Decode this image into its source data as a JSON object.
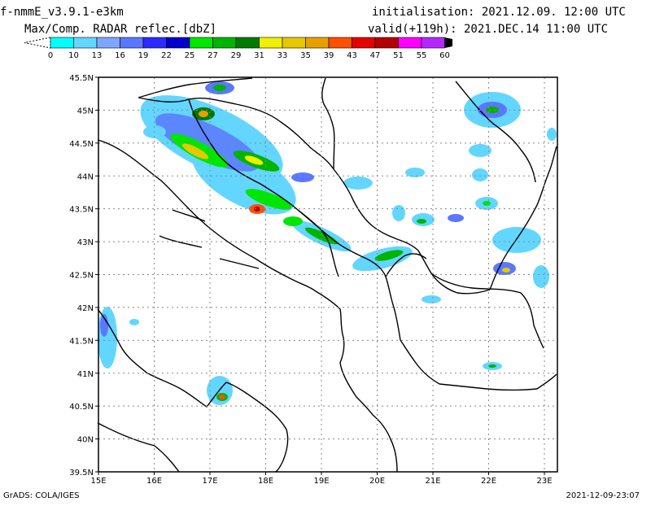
{
  "header": {
    "model": "f-nmmE_v3.9.1-e3km",
    "field": "Max/Comp. RADAR reflec.[dbZ]",
    "init_label": "initialisation: 2021.12.09. 12:00 UTC",
    "valid_label": "valid(+119h): 2021.DEC.14 11:00 UTC"
  },
  "legend": {
    "values": [
      "0",
      "10",
      "13",
      "16",
      "19",
      "22",
      "25",
      "27",
      "29",
      "31",
      "33",
      "35",
      "39",
      "43",
      "47",
      "51",
      "55",
      "60"
    ],
    "colors": [
      "#00ffff",
      "#62d6ff",
      "#7ea6ff",
      "#5a78ff",
      "#2b2bff",
      "#0000cc",
      "#00e600",
      "#00b400",
      "#007a00",
      "#f0f000",
      "#e6c800",
      "#e6a000",
      "#ff5000",
      "#e60000",
      "#b40000",
      "#ff00ff",
      "#b428ff",
      "#000000"
    ]
  },
  "map": {
    "lat_labels": [
      "45.5N",
      "45N",
      "44.5N",
      "44N",
      "43.5N",
      "43N",
      "42.5N",
      "42N",
      "41.5N",
      "41N",
      "40.5N",
      "40N",
      "39.5N"
    ],
    "lon_labels": [
      "15E",
      "16E",
      "17E",
      "18E",
      "19E",
      "20E",
      "21E",
      "22E",
      "23E"
    ]
  },
  "footer": {
    "left": "GrADS: COLA/IGES",
    "right": "2021-12-09-23:07"
  }
}
